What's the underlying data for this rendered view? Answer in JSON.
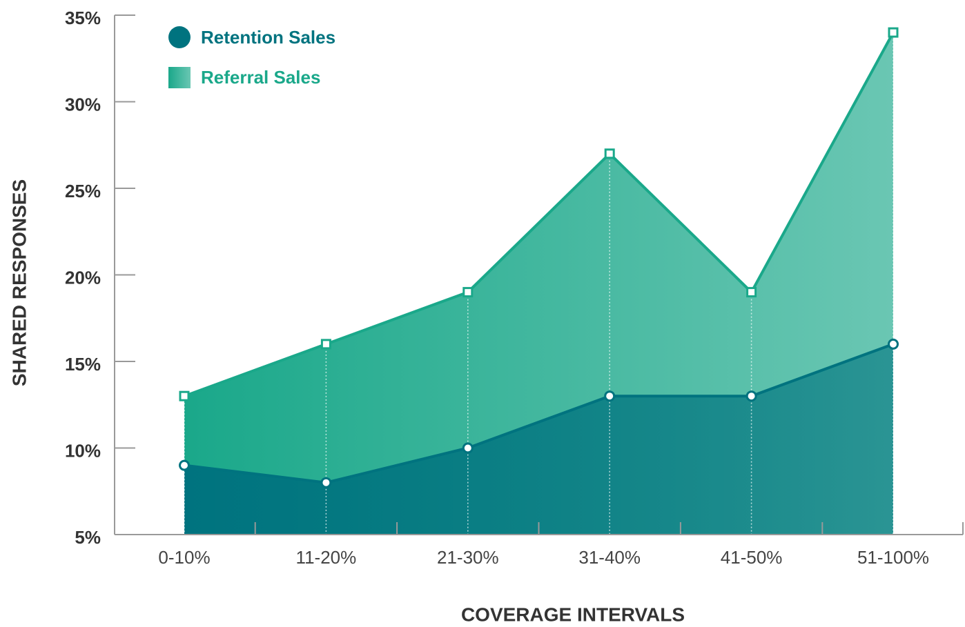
{
  "chart_data": {
    "type": "area",
    "xlabel": "COVERAGE INTERVALS",
    "ylabel": "SHARED RESPONSES",
    "categories": [
      "0-10%",
      "11-20%",
      "21-30%",
      "31-40%",
      "41-50%",
      "51-100%"
    ],
    "series": [
      {
        "name": "Retention Sales",
        "color": "#00737f",
        "values": [
          9,
          8,
          10,
          13,
          13,
          16
        ]
      },
      {
        "name": "Referral Sales",
        "color": "#1aa88a",
        "values": [
          13,
          16,
          19,
          27,
          19,
          34
        ]
      }
    ],
    "ylim": [
      5,
      35
    ],
    "yticks": [
      {
        "value": 5,
        "label": "5%"
      },
      {
        "value": 10,
        "label": "10%"
      },
      {
        "value": 15,
        "label": "15%"
      },
      {
        "value": 20,
        "label": "20%"
      },
      {
        "value": 25,
        "label": "25%"
      },
      {
        "value": 30,
        "label": "30%"
      },
      {
        "value": 35,
        "label": "35%"
      }
    ],
    "legend": "upper left"
  }
}
